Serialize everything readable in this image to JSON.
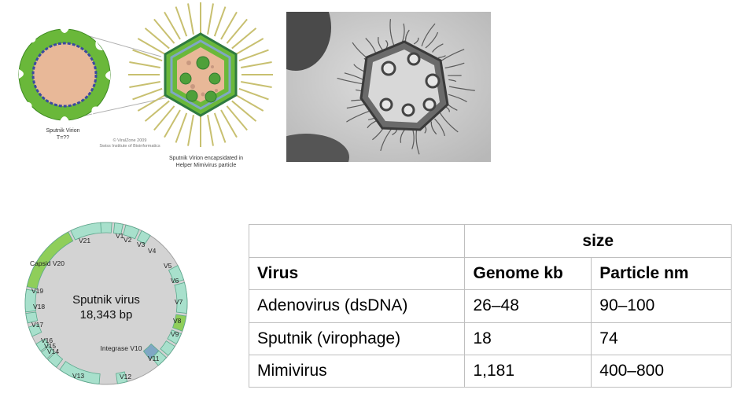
{
  "schematic": {
    "sputnik_label_line1": "Sputnik Virion",
    "sputnik_label_line2": "T=??",
    "copyright_line1": "© ViralZone 2009",
    "copyright_line2": "Swiss Institute of Bioinformatics",
    "mimivirus_label_line1": "Sputnik Virion encapsidated in",
    "mimivirus_label_line2": "Helper Mimivirus particle"
  },
  "genome_map": {
    "center_title": "Sputnik virus",
    "center_length": "18,343 bp",
    "orfs": [
      {
        "label": "V1"
      },
      {
        "label": "V2"
      },
      {
        "label": "V3"
      },
      {
        "label": "V4"
      },
      {
        "label": "V5"
      },
      {
        "label": "V6"
      },
      {
        "label": "V7"
      },
      {
        "label": "V8"
      },
      {
        "label": "V9"
      },
      {
        "label": "Integrase V10"
      },
      {
        "label": "V11"
      },
      {
        "label": "V12"
      },
      {
        "label": "V13"
      },
      {
        "label": "V14"
      },
      {
        "label": "V15"
      },
      {
        "label": "V16"
      },
      {
        "label": "V17"
      },
      {
        "label": "V18"
      },
      {
        "label": "V19"
      },
      {
        "label": "Capsid V20"
      },
      {
        "label": "V21"
      }
    ]
  },
  "table": {
    "group_header": "size",
    "columns": [
      "Virus",
      "Genome kb",
      "Particle nm"
    ],
    "rows": [
      {
        "virus": "Adenovirus (dsDNA)",
        "genome": "26–48",
        "particle": "90–100"
      },
      {
        "virus": "Sputnik (virophage)",
        "genome": "18",
        "particle": "74"
      },
      {
        "virus": "Mimivirus",
        "genome": "1,181",
        "particle": "400–800"
      }
    ]
  },
  "colors": {
    "orf_light": "#a8e0cc",
    "orf_green": "#8fce5a",
    "orf_blue": "#7fa7c4",
    "genome_disc": "#d3d3d3",
    "capsid_green": "#6ab83a",
    "core_tan": "#e8b898"
  }
}
